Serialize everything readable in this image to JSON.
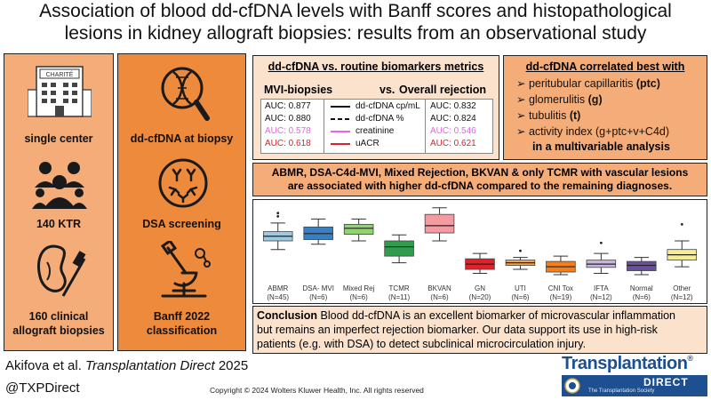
{
  "title": {
    "line1": "Association of blood dd-cfDNA levels with Banff scores and histopathological",
    "line2": "lesions in kidney allograft biopsies: results from an observational study"
  },
  "left": {
    "logo_text": "CHARITÉ",
    "items": [
      "single center",
      "140 KTR",
      "160 clinical",
      "allograft biopsies"
    ]
  },
  "middle": {
    "items": [
      "dd-cfDNA at biopsy",
      "DSA screening",
      "Banff 2022",
      "classification"
    ]
  },
  "metrics": {
    "title": "dd-cfDNA vs. routine biomarkers metrics",
    "left_header": "MVI-biopsies",
    "vs": "vs.",
    "right_header": "Overall rejection",
    "rows": [
      {
        "left": "AUC: 0.877",
        "legend": "dd-cfDNA cp/mL",
        "right": "AUC: 0.832",
        "color": "#111111"
      },
      {
        "left": "AUC: 0.880",
        "legend": "dd-cfDNA %",
        "right": "AUC: 0.824",
        "color": "#111111"
      },
      {
        "left": "AUC: 0.578",
        "legend": "creatinine",
        "right": "AUC: 0.546",
        "color": "#e565e5"
      },
      {
        "left": "AUC: 0.618",
        "legend": "uACR",
        "right": "AUC: 0.621",
        "color": "#e0212b"
      }
    ]
  },
  "correlation": {
    "title": "dd-cfDNA correlated best with",
    "items": [
      {
        "text": "peritubular capillaritis ",
        "bold": "(ptc)"
      },
      {
        "text": "glomerulitis ",
        "bold": "(g)"
      },
      {
        "text": "tubulitis ",
        "bold": "(t)"
      },
      {
        "text": "activity index (g+ptc+v+C4d)",
        "bold": ""
      }
    ],
    "footer": "in a multivariable analysis"
  },
  "diagnoses": {
    "line1": "ABMR, DSA-C4d-MVI, Mixed Rejection, BKVAN & only TCMR with vascular lesions",
    "line2": "are associated with higher dd-cfDNA compared to the remaining diagnoses."
  },
  "chart_data": {
    "type": "box",
    "categories": [
      {
        "name": "ABMR",
        "n": "(N=45)",
        "color": "#9ecae1",
        "q1": 0.55,
        "median": 0.62,
        "q3": 0.69,
        "lo": 0.42,
        "hi": 0.82,
        "out": [
          0.92,
          0.97
        ]
      },
      {
        "name": "DSA- MVI",
        "n": "(N=6)",
        "color": "#3a7fc1",
        "q1": 0.57,
        "median": 0.66,
        "q3": 0.76,
        "lo": 0.5,
        "hi": 0.88,
        "out": []
      },
      {
        "name": "Mixed Rej",
        "n": "(N=6)",
        "color": "#8fd46e",
        "q1": 0.65,
        "median": 0.74,
        "q3": 0.8,
        "lo": 0.55,
        "hi": 0.88,
        "out": []
      },
      {
        "name": "TCMR",
        "n": "(N=11)",
        "color": "#2f9e4c",
        "q1": 0.32,
        "median": 0.46,
        "q3": 0.55,
        "lo": 0.22,
        "hi": 0.64,
        "out": []
      },
      {
        "name": "BKVAN",
        "n": "(N=6)",
        "color": "#f49aa0",
        "q1": 0.67,
        "median": 0.78,
        "q3": 0.95,
        "lo": 0.55,
        "hi": 1.05,
        "out": []
      },
      {
        "name": "GN",
        "n": "(N=20)",
        "color": "#e0212b",
        "q1": 0.12,
        "median": 0.2,
        "q3": 0.28,
        "lo": 0.06,
        "hi": 0.36,
        "out": []
      },
      {
        "name": "UTI",
        "n": "(N=6)",
        "color": "#f2a54b",
        "q1": 0.18,
        "median": 0.22,
        "q3": 0.26,
        "lo": 0.12,
        "hi": 0.3,
        "out": [
          0.4
        ]
      },
      {
        "name": "CNI Tox",
        "n": "(N=19)",
        "color": "#f57e1c",
        "q1": 0.08,
        "median": 0.16,
        "q3": 0.24,
        "lo": 0.04,
        "hi": 0.32,
        "out": []
      },
      {
        "name": "IFTA",
        "n": "(N=12)",
        "color": "#c8b6e0",
        "q1": 0.15,
        "median": 0.2,
        "q3": 0.26,
        "lo": 0.06,
        "hi": 0.36,
        "out": [
          0.52
        ]
      },
      {
        "name": "Normal",
        "n": "(N=6)",
        "color": "#6a4fa0",
        "q1": 0.1,
        "median": 0.18,
        "q3": 0.24,
        "lo": 0.04,
        "hi": 0.3,
        "out": []
      },
      {
        "name": "Other",
        "n": "(N=12)",
        "color": "#f7ec8e",
        "q1": 0.26,
        "median": 0.34,
        "q3": 0.42,
        "lo": 0.16,
        "hi": 0.55,
        "out": [
          0.8
        ]
      }
    ],
    "ylim": [
      0,
      1.1
    ]
  },
  "conclusion": {
    "label": "Conclusion",
    "line1": " Blood dd-cfDNA is an excellent biomarker of microvascular inflammation",
    "line2": "but remains an imperfect rejection biomarker. Our data support its use in high-risk",
    "line3": "patients (e.g. with DSA) to detect subclinical microcirculation injury."
  },
  "footer": {
    "citation_authors": "Akifova et al. ",
    "citation_journal": "Transplantation Direct",
    "citation_year": " 2025",
    "handle": "@TXPDirect",
    "copyright": "Copyright © 2024  Wolters Kluwer Health, Inc. All rights reserved",
    "journal_logo": "Transplantation",
    "journal_reg": "®",
    "journal_direct": "DIRECT",
    "journal_tagline": "The Transplantation Society"
  },
  "colors": {
    "panel_light": "#f4ad79",
    "panel_dark": "#ee8a3c",
    "panel_pale": "#fbe2cc",
    "brand_blue": "#1d4f91"
  }
}
